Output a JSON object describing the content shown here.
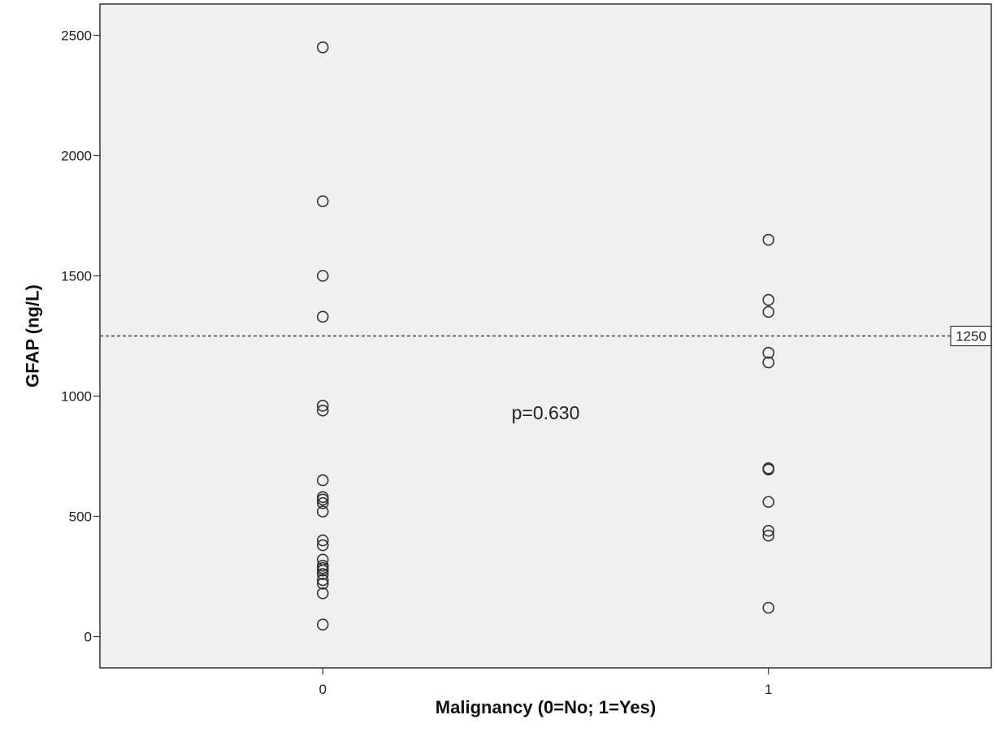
{
  "colors": {
    "page_background": "#ffffff",
    "plot_background": "#f0f0f0",
    "frame": "#333333",
    "marker_stroke": "#333333",
    "reference_line": "#444444"
  },
  "chart_data": {
    "type": "scatter",
    "title": "",
    "xlabel": "Malignancy (0=No; 1=Yes)",
    "ylabel": "GFAP (ng/L)",
    "xlim": [
      -0.5,
      1.5
    ],
    "ylim": [
      -130,
      2630
    ],
    "x_ticks": [
      0,
      1
    ],
    "x_tick_labels": [
      "0",
      "1"
    ],
    "y_ticks": [
      0,
      500,
      1000,
      1500,
      2000,
      2500
    ],
    "y_tick_labels": [
      "0",
      "500",
      "1000",
      "1500",
      "2000",
      "2500"
    ],
    "grid": false,
    "marker": "open-circle",
    "points": [
      {
        "x": 0,
        "y": 2450
      },
      {
        "x": 0,
        "y": 1810
      },
      {
        "x": 0,
        "y": 1500
      },
      {
        "x": 0,
        "y": 1330
      },
      {
        "x": 0,
        "y": 960
      },
      {
        "x": 0,
        "y": 940
      },
      {
        "x": 0,
        "y": 650
      },
      {
        "x": 0,
        "y": 580
      },
      {
        "x": 0,
        "y": 570
      },
      {
        "x": 0,
        "y": 555
      },
      {
        "x": 0,
        "y": 520
      },
      {
        "x": 0,
        "y": 400
      },
      {
        "x": 0,
        "y": 380
      },
      {
        "x": 0,
        "y": 320
      },
      {
        "x": 0,
        "y": 295
      },
      {
        "x": 0,
        "y": 285
      },
      {
        "x": 0,
        "y": 275
      },
      {
        "x": 0,
        "y": 260
      },
      {
        "x": 0,
        "y": 235
      },
      {
        "x": 0,
        "y": 220
      },
      {
        "x": 0,
        "y": 180
      },
      {
        "x": 0,
        "y": 50
      },
      {
        "x": 1,
        "y": 1650
      },
      {
        "x": 1,
        "y": 1400
      },
      {
        "x": 1,
        "y": 1350
      },
      {
        "x": 1,
        "y": 1180
      },
      {
        "x": 1,
        "y": 1140
      },
      {
        "x": 1,
        "y": 700
      },
      {
        "x": 1,
        "y": 695
      },
      {
        "x": 1,
        "y": 560
      },
      {
        "x": 1,
        "y": 440
      },
      {
        "x": 1,
        "y": 420
      },
      {
        "x": 1,
        "y": 120
      }
    ],
    "reference_line": {
      "y": 1250,
      "label": "1250",
      "style": "dashed"
    },
    "annotations": [
      {
        "text": "p=0.630",
        "x": 0.5,
        "y": 930
      }
    ]
  }
}
